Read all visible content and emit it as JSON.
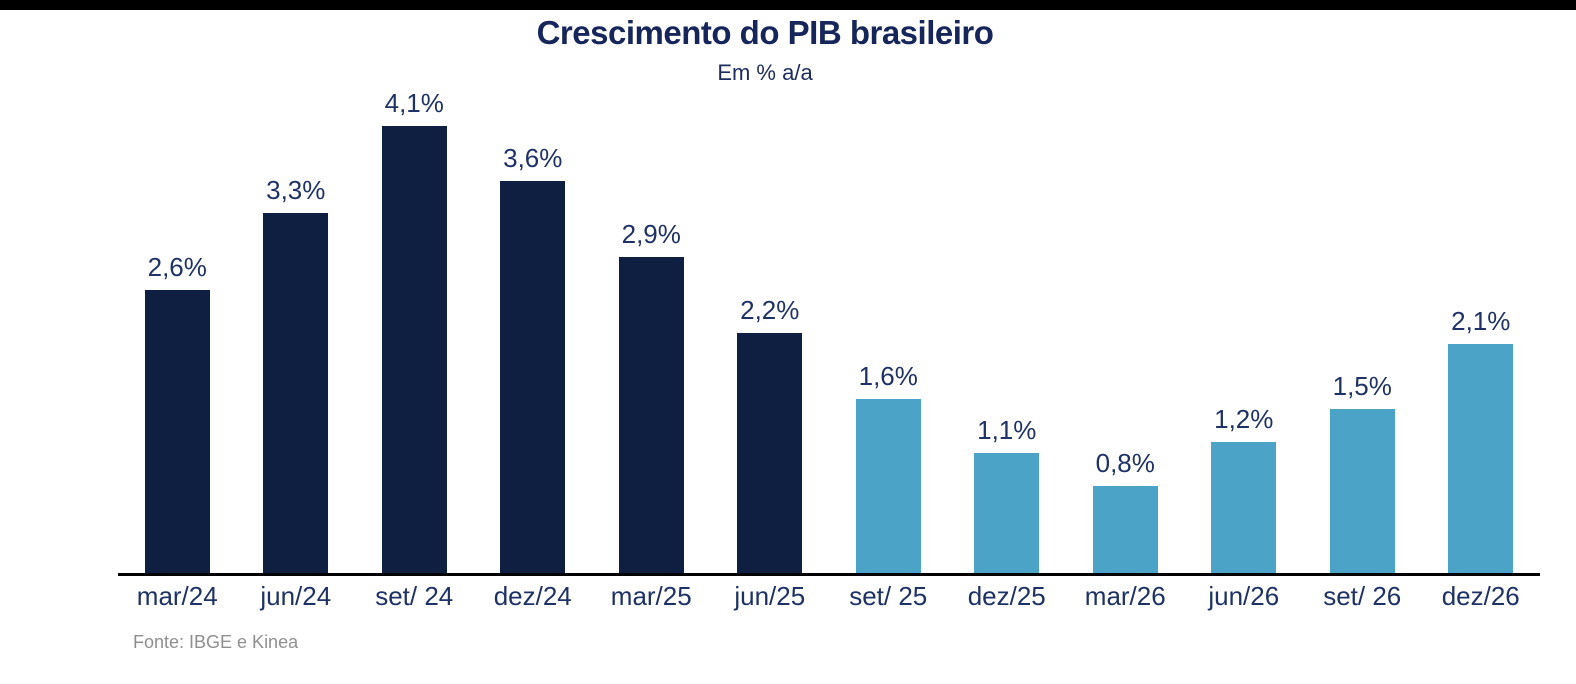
{
  "page": {
    "background_color": "#ffffff",
    "top_strip_color": "#000000"
  },
  "header": {
    "title": "Crescimento do PIB brasileiro",
    "subtitle": "Em % a/a"
  },
  "footer": {
    "source": "Fonte: IBGE e Kinea"
  },
  "chart_data": {
    "type": "bar",
    "title": "Crescimento do PIB brasileiro",
    "subtitle": "Em % a/a",
    "categories": [
      "mar/24",
      "jun/24",
      "set/ 24",
      "dez/24",
      "mar/25",
      "jun/25",
      "set/ 25",
      "dez/25",
      "mar/26",
      "jun/26",
      "set/ 26",
      "dez/26"
    ],
    "values": [
      2.6,
      3.3,
      4.1,
      3.6,
      2.9,
      2.2,
      1.6,
      1.1,
      0.8,
      1.2,
      1.5,
      2.1
    ],
    "value_labels": [
      "2,6%",
      "3,3%",
      "4,1%",
      "3,6%",
      "2,9%",
      "2,2%",
      "1,6%",
      "1,1%",
      "0,8%",
      "1,2%",
      "1,5%",
      "2,1%"
    ],
    "bar_colors": [
      "#0E1F42",
      "#0E1F42",
      "#0E1F42",
      "#0E1F42",
      "#0E1F42",
      "#0E1F42",
      "#4BA4C8",
      "#4BA4C8",
      "#4BA4C8",
      "#4BA4C8",
      "#4BA4C8",
      "#4BA4C8"
    ],
    "series_colors": {
      "actual": "#0E1F42",
      "forecast": "#4BA4C8"
    },
    "actual_count": 6,
    "forecast_count": 6,
    "ylim": [
      0,
      4.4
    ],
    "grid": false,
    "legend": "none",
    "value_suffix": "%",
    "decimal_separator": ",",
    "xlabel": "",
    "ylabel": "",
    "source": "Fonte: IBGE e Kinea",
    "axis_line_color": "#000000",
    "label_text_color": "#1f3265",
    "title_text_color": "#16255a"
  }
}
